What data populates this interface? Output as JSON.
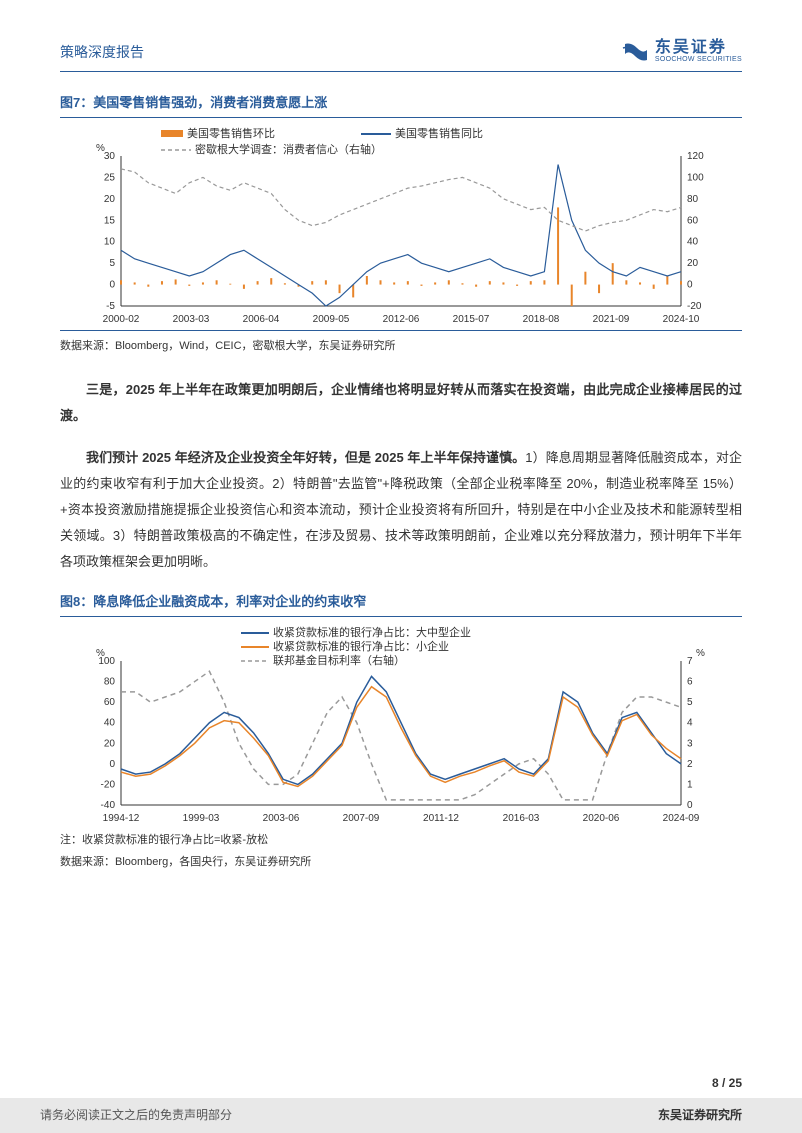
{
  "header": {
    "title": "策略深度报告",
    "company_cn": "东吴证券",
    "company_en": "SOOCHOW SECURITIES"
  },
  "chart7": {
    "title": "图7：美国零售销售强劲，消费者消费意愿上涨",
    "type": "line",
    "legend": {
      "series1": "美国零售销售环比",
      "series2": "美国零售销售同比",
      "series3": "密歇根大学调查：消费者信心（右轴）"
    },
    "colors": {
      "series1": "#e8852a",
      "series2": "#2a5c9a",
      "series3": "#999999",
      "axis": "#333333",
      "grid": "#cccccc",
      "bg": "#ffffff"
    },
    "y_left": {
      "unit": "%",
      "min": -5,
      "max": 30,
      "ticks": [
        -5,
        0,
        5,
        10,
        15,
        20,
        25,
        30
      ]
    },
    "y_right": {
      "min": -20,
      "max": 120,
      "ticks": [
        -20,
        0,
        20,
        40,
        60,
        80,
        100,
        120
      ]
    },
    "x_labels": [
      "2000-02",
      "2003-03",
      "2006-04",
      "2009-05",
      "2012-06",
      "2015-07",
      "2018-08",
      "2021-09",
      "2024-10"
    ],
    "series1_data": [
      1,
      0.5,
      -0.5,
      0.8,
      1.2,
      -0.3,
      0.5,
      1,
      0.2,
      -1,
      0.8,
      1.5,
      0.3,
      -0.5,
      0.8,
      1,
      -2,
      -3,
      2,
      1,
      0.5,
      0.8,
      -0.3,
      0.5,
      1,
      0.3,
      -0.5,
      0.8,
      0.5,
      -0.3,
      0.8,
      1,
      18,
      -5,
      3,
      -2,
      5,
      1,
      0.5,
      -1,
      2,
      0.8
    ],
    "series2_data": [
      8,
      6,
      5,
      4,
      3,
      2,
      3,
      5,
      7,
      8,
      6,
      4,
      2,
      0,
      -2,
      -5,
      -3,
      0,
      3,
      5,
      6,
      7,
      5,
      4,
      3,
      4,
      5,
      6,
      4,
      3,
      2,
      3,
      28,
      15,
      8,
      5,
      3,
      2,
      4,
      3,
      2,
      3
    ],
    "series3_data": [
      108,
      105,
      95,
      90,
      85,
      95,
      100,
      92,
      88,
      95,
      90,
      85,
      70,
      60,
      55,
      58,
      65,
      70,
      75,
      80,
      85,
      90,
      92,
      95,
      98,
      100,
      95,
      90,
      80,
      75,
      70,
      72,
      60,
      55,
      50,
      55,
      58,
      60,
      65,
      70,
      68,
      72
    ],
    "source": "数据来源：Bloomberg，Wind，CEIC，密歇根大学，东吴证券研究所",
    "font_size_axis": 10,
    "font_size_legend": 11,
    "line_width": 1.2
  },
  "paragraphs": {
    "p1_bold": "三是，2025 年上半年在政策更加明朗后，企业情绪也将明显好转从而落实在投资端，由此完成企业接棒居民的过渡。",
    "p2_bold": "我们预计 2025 年经济及企业投资全年好转，但是 2025 年上半年保持谨慎。",
    "p2_rest": "1）降息周期显著降低融资成本，对企业的约束收窄有利于加大企业投资。2）特朗普\"去监管\"+降税政策（全部企业税率降至 20%，制造业税率降至 15%）+资本投资激励措施提振企业投资信心和资本流动，预计企业投资将有所回升，特别是在中小企业及技术和能源转型相关领域。3）特朗普政策极高的不确定性，在涉及贸易、技术等政策明朗前，企业难以充分释放潜力，预计明年下半年各项政策框架会更加明晰。"
  },
  "chart8": {
    "title": "图8：降息降低企业融资成本，利率对企业的约束收窄",
    "type": "line",
    "legend": {
      "series1": "收紧贷款标准的银行净占比：大中型企业",
      "series2": "收紧贷款标准的银行净占比：小企业",
      "series3": "联邦基金目标利率（右轴）"
    },
    "colors": {
      "series1": "#2a5c9a",
      "series2": "#e8852a",
      "series3": "#999999",
      "axis": "#333333",
      "bg": "#ffffff"
    },
    "y_left": {
      "unit": "%",
      "min": -40,
      "max": 100,
      "ticks": [
        -40,
        -20,
        0,
        20,
        40,
        60,
        80,
        100
      ]
    },
    "y_right": {
      "unit": "%",
      "min": 0,
      "max": 7,
      "ticks": [
        0,
        1,
        2,
        3,
        4,
        5,
        6,
        7
      ]
    },
    "x_labels": [
      "1994-12",
      "1999-03",
      "2003-06",
      "2007-09",
      "2011-12",
      "2016-03",
      "2020-06",
      "2024-09"
    ],
    "series1_data": [
      -5,
      -10,
      -8,
      0,
      10,
      25,
      40,
      50,
      45,
      30,
      10,
      -15,
      -20,
      -10,
      5,
      20,
      60,
      85,
      70,
      40,
      10,
      -10,
      -15,
      -10,
      -5,
      0,
      5,
      -5,
      -10,
      5,
      70,
      60,
      30,
      10,
      45,
      50,
      30,
      10,
      0
    ],
    "series2_data": [
      -8,
      -12,
      -10,
      -2,
      8,
      20,
      35,
      42,
      40,
      25,
      8,
      -18,
      -22,
      -12,
      3,
      18,
      55,
      75,
      65,
      35,
      8,
      -12,
      -18,
      -12,
      -8,
      -2,
      3,
      -8,
      -12,
      3,
      65,
      55,
      28,
      8,
      42,
      48,
      28,
      15,
      5
    ],
    "series3_data": [
      5.5,
      5.5,
      5.0,
      5.25,
      5.5,
      6.0,
      6.5,
      5.0,
      3.0,
      1.75,
      1.0,
      1.0,
      1.5,
      3.0,
      4.5,
      5.25,
      4.0,
      2.0,
      0.25,
      0.25,
      0.25,
      0.25,
      0.25,
      0.25,
      0.5,
      1.0,
      1.5,
      2.0,
      2.25,
      1.5,
      0.25,
      0.25,
      0.25,
      2.5,
      4.5,
      5.25,
      5.25,
      5.0,
      4.75
    ],
    "note": "注：收紧贷款标准的银行净占比=收紧-放松",
    "source": "数据来源：Bloomberg，各国央行，东吴证券研究所",
    "font_size_axis": 10,
    "font_size_legend": 11,
    "line_width": 1.5
  },
  "footer": {
    "page": "8 / 25",
    "disclaimer": "请务必阅读正文之后的免责声明部分",
    "institute": "东吴证券研究所"
  }
}
